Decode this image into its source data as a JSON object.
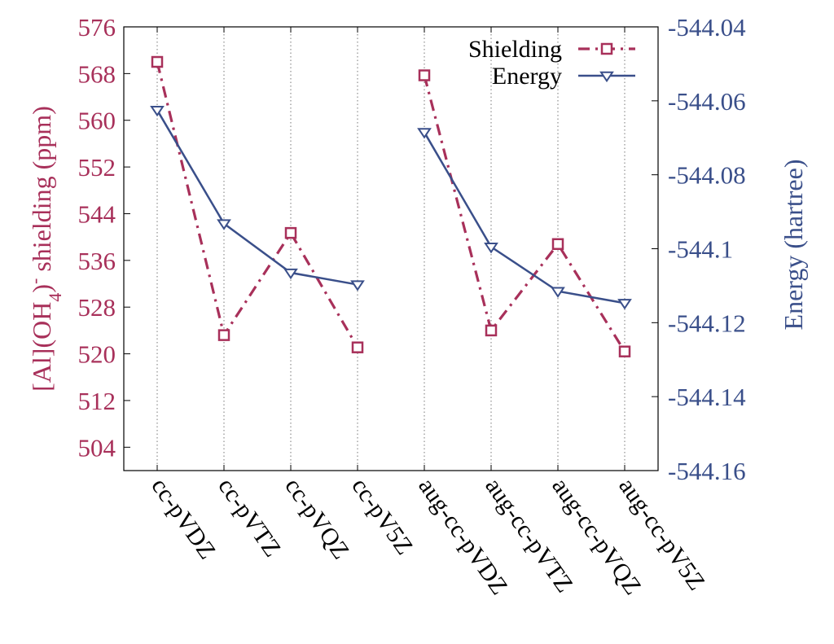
{
  "chart_data": {
    "type": "line",
    "categories": [
      "cc-pVDZ",
      "cc-pVTZ",
      "cc-pVQZ",
      "cc-pV5Z",
      "aug-cc-pVDZ",
      "aug-cc-pVTZ",
      "aug-cc-pVQZ",
      "aug-cc-pV5Z"
    ],
    "ylabel_left": {
      "pre": "[Al](OH",
      "sub": "4",
      "mid": ")",
      "sup": "-",
      "post": " shielding (ppm)"
    },
    "ylabel_right": "Energy (hartree)",
    "ylim_left": [
      500,
      576
    ],
    "ylim_right": [
      -544.16,
      -544.04
    ],
    "yticks_left": [
      576,
      568,
      560,
      552,
      544,
      536,
      528,
      520,
      512,
      504
    ],
    "yticks_right": [
      "-544.04",
      "-544.06",
      "-544.08",
      "-544.1",
      "-544.12",
      "-544.14",
      "-544.16"
    ],
    "grid": "vertical dotted lines at each category",
    "legend_position": "top-right",
    "series": [
      {
        "name": "Shielding",
        "axis": "left",
        "color": "#a8305a",
        "marker": "square-open",
        "line": "dash-dot",
        "groups": [
          {
            "x": [
              "cc-pVDZ",
              "cc-pVTZ",
              "cc-pVQZ",
              "cc-pV5Z"
            ],
            "y": [
              570.0,
              523.2,
              540.7,
              521.1
            ]
          },
          {
            "x": [
              "aug-cc-pVDZ",
              "aug-cc-pVTZ",
              "aug-cc-pVQZ",
              "aug-cc-pV5Z"
            ],
            "y": [
              567.7,
              524.0,
              538.8,
              520.4
            ]
          }
        ]
      },
      {
        "name": "Energy",
        "axis": "right",
        "color": "#3a4f8a",
        "marker": "triangle-down-open",
        "line": "solid",
        "groups": [
          {
            "x": [
              "cc-pVDZ",
              "cc-pVTZ",
              "cc-pVQZ",
              "cc-pV5Z"
            ],
            "y": [
              -544.0625,
              -544.0932,
              -544.1065,
              -544.1097
            ]
          },
          {
            "x": [
              "aug-cc-pVDZ",
              "aug-cc-pVTZ",
              "aug-cc-pVQZ",
              "aug-cc-pV5Z"
            ],
            "y": [
              -544.0685,
              -544.0995,
              -544.1115,
              -544.1147
            ]
          }
        ]
      }
    ]
  }
}
